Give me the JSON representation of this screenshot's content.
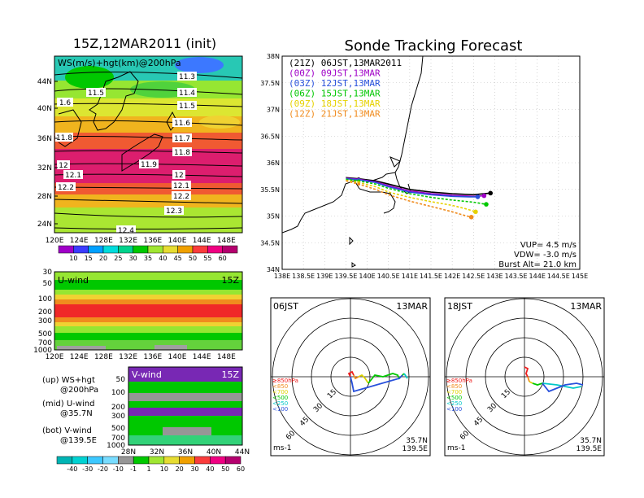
{
  "left_title": "15Z,12MAR2011 (init)",
  "right_title": "Sonde Tracking Forecast",
  "map_panel": {
    "label": "WS(m/s)+hgt(km)@200hPa",
    "lat_ticks": [
      "44N",
      "40N",
      "36N",
      "32N",
      "28N",
      "24N"
    ],
    "lon_ticks": [
      "120E",
      "124E",
      "128E",
      "132E",
      "136E",
      "140E",
      "144E",
      "148E"
    ],
    "contour_labels": [
      "11.3",
      "11.4",
      "11.5",
      "11.5",
      "1.6",
      "11.6",
      "11.7",
      "11.8",
      "11.8",
      "11.9",
      "12",
      "12",
      "12.1",
      "12.1",
      "12.2",
      "12.2",
      "12.3",
      "12.4"
    ],
    "colorbar_labels": [
      "10",
      "15",
      "20",
      "25",
      "30",
      "35",
      "40",
      "45",
      "50",
      "55",
      "60"
    ],
    "colorbar_colors": [
      "#a000c8",
      "#3c3cff",
      "#00a0ff",
      "#00dcdc",
      "#00d28c",
      "#00c800",
      "#a0e632",
      "#e6dc32",
      "#f0a000",
      "#fa3c3c",
      "#f00082",
      "#b4006e"
    ]
  },
  "u_panel": {
    "label": "U-wind",
    "time": "15Z",
    "y_ticks": [
      "30",
      "50",
      "100",
      "200",
      "300",
      "500",
      "700",
      "1000"
    ],
    "x_ticks": [
      "120E",
      "124E",
      "128E",
      "132E",
      "136E",
      "140E",
      "144E",
      "148E"
    ]
  },
  "v_panel": {
    "label": "V-wind",
    "time": "15Z",
    "y_ticks": [
      "50",
      "100",
      "200",
      "300",
      "500",
      "700",
      "1000"
    ],
    "x_ticks": [
      "28N",
      "32N",
      "36N",
      "40N",
      "44N"
    ]
  },
  "legend_notes": [
    {
      "a": "(up) WS+hgt",
      "b": "@200hPa"
    },
    {
      "a": "(mid) U-wind",
      "b": "@35.7N"
    },
    {
      "a": "(bot) V-wind",
      "b": "@139.5E"
    }
  ],
  "bottom_colorbar": {
    "labels": [
      "-40",
      "-30",
      "-20",
      "-10",
      "-1",
      "1",
      "10",
      "20",
      "30",
      "40",
      "50",
      "60"
    ],
    "colors": [
      "#00b4b4",
      "#00d2d2",
      "#3cc8ff",
      "#78dcff",
      "#969696",
      "#00c800",
      "#a0e632",
      "#e6dc32",
      "#f0a000",
      "#fa3c3c",
      "#f00082",
      "#b4006e"
    ]
  },
  "chart_data": {
    "type": "line",
    "x_ticks": [
      "138E",
      "138.5E",
      "139E",
      "139.5E",
      "140E",
      "140.5E",
      "141E",
      "141.5E",
      "142E",
      "142.5E",
      "143E",
      "143.5E",
      "144E",
      "144.5E",
      "145E"
    ],
    "y_ticks": [
      "34N",
      "34.5N",
      "35N",
      "35.5N",
      "36N",
      "36.5N",
      "37N",
      "37.5N",
      "38N"
    ],
    "xlim": [
      138,
      145
    ],
    "ylim": [
      34,
      38
    ],
    "grid": true,
    "legend_position": "top-left",
    "series": [
      {
        "name": "(21Z) 06JST,13MAR2011",
        "color": "#000000",
        "x": [
          139.5,
          139.8,
          140.2,
          140.5,
          141,
          141.5,
          142,
          142.5,
          142.9
        ],
        "y": [
          35.72,
          35.7,
          35.66,
          35.6,
          35.5,
          35.45,
          35.42,
          35.4,
          35.43
        ]
      },
      {
        "name": "(00Z) 09JST,13MAR",
        "color": "#a000c8",
        "x": [
          139.5,
          139.8,
          140.2,
          140.5,
          141,
          141.5,
          142,
          142.5,
          142.75
        ],
        "y": [
          35.71,
          35.69,
          35.64,
          35.57,
          35.47,
          35.42,
          35.39,
          35.37,
          35.38
        ]
      },
      {
        "name": "(03Z) 12JST,13MAR",
        "color": "#2850dc",
        "x": [
          139.5,
          139.8,
          140.2,
          140.5,
          141,
          141.5,
          142,
          142.4,
          142.6
        ],
        "y": [
          35.7,
          35.68,
          35.63,
          35.55,
          35.45,
          35.4,
          35.37,
          35.36,
          35.36
        ]
      },
      {
        "name": "(06Z) 15JST,13MAR",
        "color": "#00c800",
        "x": [
          139.5,
          139.8,
          140.2,
          140.5,
          141,
          141.5,
          142,
          142.5,
          142.8
        ],
        "y": [
          35.69,
          35.66,
          35.6,
          35.52,
          35.42,
          35.35,
          35.3,
          35.26,
          35.22
        ]
      },
      {
        "name": "(09Z) 18JST,13MAR",
        "color": "#e6d200",
        "x": [
          139.5,
          139.8,
          140.2,
          140.5,
          141,
          141.5,
          142,
          142.3,
          142.55
        ],
        "y": [
          35.67,
          35.63,
          35.55,
          35.45,
          35.35,
          35.27,
          35.2,
          35.14,
          35.08
        ]
      },
      {
        "name": "(12Z) 21JST,13MAR",
        "color": "#f08c1e",
        "x": [
          139.5,
          139.8,
          140.2,
          140.5,
          141,
          141.5,
          142,
          142.25,
          142.45
        ],
        "y": [
          35.66,
          35.6,
          35.5,
          35.4,
          35.28,
          35.18,
          35.08,
          35.02,
          34.98
        ]
      }
    ],
    "annotations": [
      "VUP= 4.5 m/s",
      "VDW= -3.0 m/s",
      "Burst Alt= 21.0 km"
    ]
  },
  "hodograph_1": {
    "time": "06JST",
    "date": "13MAR",
    "lat": "35.7N",
    "lon": "139.5E",
    "unit": "ms-1",
    "ring_labels": [
      "15",
      "30",
      "45",
      "60"
    ],
    "levels": [
      {
        "label": "≥850hPa",
        "color": "#f01e1e"
      },
      {
        "label": "<850",
        "color": "#f08c1e"
      },
      {
        "label": "<700",
        "color": "#dcd200"
      },
      {
        "label": "<500",
        "color": "#00c800"
      },
      {
        "label": "<250",
        "color": "#00c8c8"
      },
      {
        "label": "<100",
        "color": "#2850dc"
      }
    ]
  },
  "hodograph_2": {
    "time": "18JST",
    "date": "13MAR",
    "lat": "35.7N",
    "lon": "139.5E",
    "unit": "ms-1",
    "ring_labels": [
      "15",
      "30",
      "45",
      "60"
    ],
    "levels": [
      {
        "label": "≥850hPa",
        "color": "#f01e1e"
      },
      {
        "label": "<850",
        "color": "#f08c1e"
      },
      {
        "label": "<700",
        "color": "#dcd200"
      },
      {
        "label": "<500",
        "color": "#00c800"
      },
      {
        "label": "<250",
        "color": "#00c8c8"
      },
      {
        "label": "<100",
        "color": "#2850dc"
      }
    ]
  }
}
